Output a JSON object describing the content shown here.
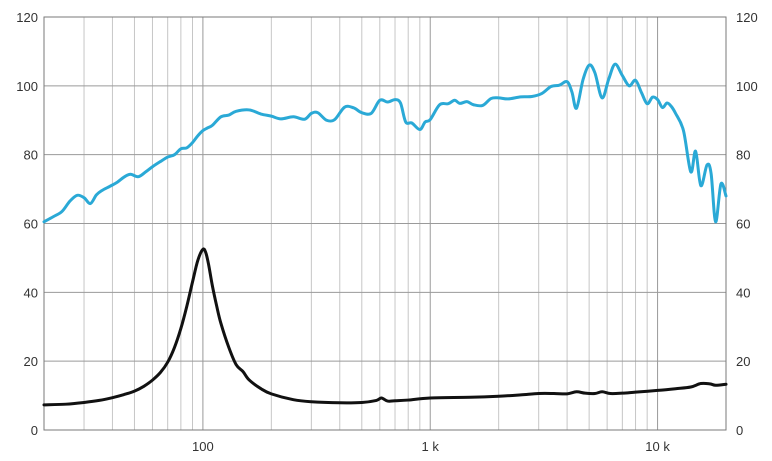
{
  "chart_data": {
    "type": "line",
    "title": "",
    "xlabel": "",
    "ylabel": "",
    "x_scale": "log",
    "xlim": [
      20,
      20000
    ],
    "ylim": [
      0,
      120
    ],
    "y_ticks": [
      0,
      20,
      40,
      60,
      80,
      100,
      120
    ],
    "x_ticks": [
      {
        "value": 100,
        "label": "100"
      },
      {
        "value": 1000,
        "label": "1 k"
      },
      {
        "value": 10000,
        "label": "10 k"
      }
    ],
    "grid": true,
    "legend": "none",
    "series": [
      {
        "color": "#2aa9d6",
        "points": [
          [
            20,
            60.5
          ],
          [
            22,
            62
          ],
          [
            24,
            63.5
          ],
          [
            26,
            66.5
          ],
          [
            28,
            68.2
          ],
          [
            30,
            67.5
          ],
          [
            32,
            65.8
          ],
          [
            34,
            68.3
          ],
          [
            36,
            69.6
          ],
          [
            39,
            70.8
          ],
          [
            42,
            72.0
          ],
          [
            45,
            73.5
          ],
          [
            48,
            74.3
          ],
          [
            52,
            73.6
          ],
          [
            56,
            75.0
          ],
          [
            60,
            76.5
          ],
          [
            65,
            78.0
          ],
          [
            70,
            79.3
          ],
          [
            75,
            80.0
          ],
          [
            80,
            81.7
          ],
          [
            85,
            82.0
          ],
          [
            90,
            83.5
          ],
          [
            95,
            85.5
          ],
          [
            100,
            87.0
          ],
          [
            105,
            87.8
          ],
          [
            110,
            88.5
          ],
          [
            120,
            91.0
          ],
          [
            130,
            91.5
          ],
          [
            140,
            92.6
          ],
          [
            160,
            93.0
          ],
          [
            180,
            91.8
          ],
          [
            200,
            91.2
          ],
          [
            220,
            90.4
          ],
          [
            250,
            91.0
          ],
          [
            280,
            90.3
          ],
          [
            300,
            92.0
          ],
          [
            320,
            92.2
          ],
          [
            350,
            90.0
          ],
          [
            380,
            90.2
          ],
          [
            420,
            93.8
          ],
          [
            460,
            93.6
          ],
          [
            500,
            92.2
          ],
          [
            550,
            92.0
          ],
          [
            600,
            95.8
          ],
          [
            650,
            95.3
          ],
          [
            700,
            96.0
          ],
          [
            740,
            95.0
          ],
          [
            780,
            89.5
          ],
          [
            830,
            89.2
          ],
          [
            900,
            87.3
          ],
          [
            950,
            89.5
          ],
          [
            1000,
            90.2
          ],
          [
            1100,
            94.5
          ],
          [
            1200,
            94.8
          ],
          [
            1280,
            95.8
          ],
          [
            1350,
            94.9
          ],
          [
            1450,
            95.4
          ],
          [
            1550,
            94.5
          ],
          [
            1700,
            94.3
          ],
          [
            1850,
            96.3
          ],
          [
            2000,
            96.5
          ],
          [
            2200,
            96.2
          ],
          [
            2500,
            96.8
          ],
          [
            2800,
            96.9
          ],
          [
            3100,
            97.8
          ],
          [
            3400,
            99.8
          ],
          [
            3700,
            100.2
          ],
          [
            4000,
            101.2
          ],
          [
            4200,
            98.2
          ],
          [
            4400,
            93.5
          ],
          [
            4700,
            101.8
          ],
          [
            5000,
            106.0
          ],
          [
            5300,
            103.8
          ],
          [
            5700,
            96.5
          ],
          [
            6100,
            102.0
          ],
          [
            6500,
            106.3
          ],
          [
            7000,
            103.0
          ],
          [
            7500,
            100.0
          ],
          [
            8000,
            101.6
          ],
          [
            8500,
            98.0
          ],
          [
            9000,
            94.8
          ],
          [
            9500,
            96.7
          ],
          [
            10000,
            96.0
          ],
          [
            10500,
            93.7
          ],
          [
            11000,
            95.0
          ],
          [
            11500,
            94.0
          ],
          [
            12000,
            92.0
          ],
          [
            13000,
            87.0
          ],
          [
            14000,
            75.0
          ],
          [
            14700,
            81.0
          ],
          [
            15500,
            71.0
          ],
          [
            16500,
            77.0
          ],
          [
            17200,
            74.5
          ],
          [
            18000,
            60.5
          ],
          [
            19000,
            71.5
          ],
          [
            20000,
            68.0
          ]
        ]
      },
      {
        "color": "#111111",
        "points": [
          [
            20,
            7.3
          ],
          [
            25,
            7.5
          ],
          [
            30,
            8.0
          ],
          [
            35,
            8.6
          ],
          [
            40,
            9.4
          ],
          [
            45,
            10.3
          ],
          [
            50,
            11.3
          ],
          [
            55,
            12.7
          ],
          [
            60,
            14.5
          ],
          [
            65,
            16.7
          ],
          [
            70,
            19.7
          ],
          [
            75,
            24.0
          ],
          [
            80,
            29.5
          ],
          [
            85,
            36.0
          ],
          [
            90,
            43.0
          ],
          [
            95,
            49.3
          ],
          [
            100,
            52.5
          ],
          [
            103,
            51.5
          ],
          [
            106,
            48.0
          ],
          [
            110,
            42.0
          ],
          [
            115,
            36.0
          ],
          [
            120,
            31.0
          ],
          [
            130,
            24.0
          ],
          [
            140,
            19.0
          ],
          [
            150,
            17.0
          ],
          [
            160,
            14.5
          ],
          [
            180,
            12.0
          ],
          [
            200,
            10.5
          ],
          [
            250,
            8.8
          ],
          [
            300,
            8.2
          ],
          [
            400,
            7.9
          ],
          [
            500,
            8.0
          ],
          [
            580,
            8.6
          ],
          [
            610,
            9.3
          ],
          [
            650,
            8.4
          ],
          [
            700,
            8.5
          ],
          [
            800,
            8.7
          ],
          [
            1000,
            9.3
          ],
          [
            1500,
            9.5
          ],
          [
            2000,
            9.8
          ],
          [
            2500,
            10.2
          ],
          [
            3000,
            10.6
          ],
          [
            3500,
            10.6
          ],
          [
            4000,
            10.5
          ],
          [
            4400,
            11.1
          ],
          [
            4800,
            10.7
          ],
          [
            5300,
            10.6
          ],
          [
            5700,
            11.1
          ],
          [
            6200,
            10.6
          ],
          [
            7000,
            10.7
          ],
          [
            8000,
            11.0
          ],
          [
            10000,
            11.5
          ],
          [
            12000,
            12.0
          ],
          [
            14000,
            12.5
          ],
          [
            15500,
            13.5
          ],
          [
            17000,
            13.4
          ],
          [
            18000,
            13.0
          ],
          [
            20000,
            13.3
          ]
        ]
      }
    ]
  }
}
